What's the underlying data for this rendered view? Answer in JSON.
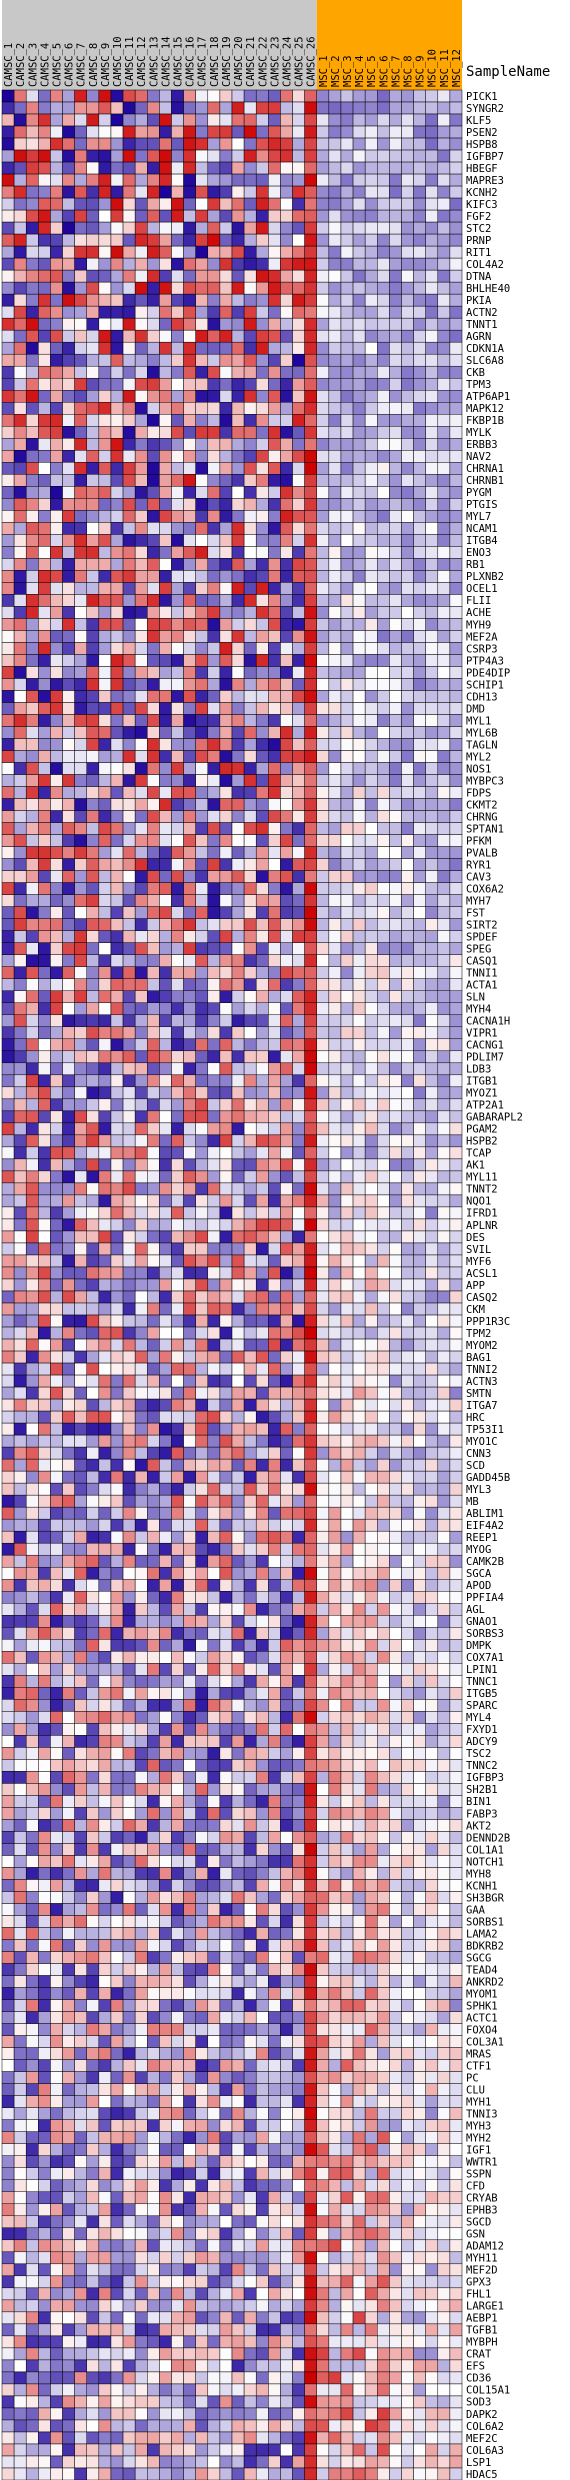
{
  "chart_data": {
    "type": "heatmap",
    "header_label": "SampleName",
    "columns": [
      "CAMSC_1",
      "CAMSC_2",
      "CAMSC_3",
      "CAMSC_4",
      "CAMSC_5",
      "CAMSC_6",
      "CAMSC_7",
      "CAMSC_8",
      "CAMSC_9",
      "CAMSC_10",
      "CAMSC_11",
      "CAMSC_12",
      "CAMSC_13",
      "CAMSC_14",
      "CAMSC_15",
      "CAMSC_16",
      "CAMSC_17",
      "CAMSC_18",
      "CAMSC_19",
      "CAMSC_20",
      "CAMSC_21",
      "CAMSC_22",
      "CAMSC_23",
      "CAMSC_24",
      "CAMSC_25",
      "CAMSC_26",
      "MSC_1",
      "MSC_2",
      "MSC_3",
      "MSC_4",
      "MSC_5",
      "MSC_6",
      "MSC_7",
      "MSC_8",
      "MSC_9",
      "MSC_10",
      "MSC_11",
      "MSC_12"
    ],
    "column_groups": [
      {
        "name": "CAMSC",
        "count": 26,
        "color": "#c8c8c8"
      },
      {
        "name": "MSC",
        "count": 12,
        "color": "#ffa500"
      }
    ],
    "rows": [
      "PICK1",
      "SYNGR2",
      "KLF5",
      "PSEN2",
      "HSPB8",
      "IGFBP7",
      "HBEGF",
      "MAPRE3",
      "KCNH2",
      "KIFC3",
      "FGF2",
      "STC2",
      "PRNP",
      "RIT1",
      "COL4A2",
      "DTNA",
      "BHLHE40",
      "PKIA",
      "ACTN2",
      "TNNT1",
      "AGRN",
      "CDKN1A",
      "SLC6A8",
      "CKB",
      "TPM3",
      "ATP6AP1",
      "MAPK12",
      "FKBP1B",
      "MYLK",
      "ERBB3",
      "NAV2",
      "CHRNA1",
      "CHRNB1",
      "PYGM",
      "PTGIS",
      "MYL7",
      "NCAM1",
      "ITGB4",
      "ENO3",
      "RB1",
      "PLXNB2",
      "OCEL1",
      "FLII",
      "ACHE",
      "MYH9",
      "MEF2A",
      "CSRP3",
      "PTP4A3",
      "PDE4DIP",
      "SCHIP1",
      "CDH13",
      "DMD",
      "MYL1",
      "MYL6B",
      "TAGLN",
      "MYL2",
      "NOS1",
      "MYBPC3",
      "FDPS",
      "CKMT2",
      "CHRNG",
      "SPTAN1",
      "PFKM",
      "PVALB",
      "RYR1",
      "CAV3",
      "COX6A2",
      "MYH7",
      "FST",
      "SIRT2",
      "SPDEF",
      "SPEG",
      "CASQ1",
      "TNNI1",
      "ACTA1",
      "SLN",
      "MYH4",
      "CACNA1H",
      "VIPR1",
      "CACNG1",
      "PDLIM7",
      "LDB3",
      "ITGB1",
      "MYOZ1",
      "ATP2A1",
      "GABARAPL2",
      "PGAM2",
      "HSPB2",
      "TCAP",
      "AK1",
      "MYL11",
      "TNNT2",
      "NQO1",
      "IFRD1",
      "APLNR",
      "DES",
      "SVIL",
      "MYF6",
      "ACSL1",
      "APP",
      "CASQ2",
      "CKM",
      "PPP1R3C",
      "TPM2",
      "MYOM2",
      "BAG1",
      "TNNI2",
      "ACTN3",
      "SMTN",
      "ITGA7",
      "HRC",
      "TP53I1",
      "MYO1C",
      "CNN3",
      "SCD",
      "GADD45B",
      "MYL3",
      "MB",
      "ABLIM1",
      "EIF4A2",
      "REEP1",
      "MYOG",
      "CAMK2B",
      "SGCA",
      "APOD",
      "PPFIA4",
      "AGL",
      "GNAO1",
      "SORBS3",
      "DMPK",
      "COX7A1",
      "LPIN1",
      "TNNC1",
      "ITGB5",
      "SPARC",
      "MYL4",
      "FXYD1",
      "ADCY9",
      "TSC2",
      "TNNC2",
      "IGFBP3",
      "SH2B1",
      "BIN1",
      "FABP3",
      "AKT2",
      "DENND2B",
      "COL1A1",
      "NOTCH1",
      "MYH8",
      "KCNH1",
      "SH3BGR",
      "GAA",
      "SORBS1",
      "LAMA2",
      "BDKRB2",
      "SGCG",
      "TEAD4",
      "ANKRD2",
      "MYOM1",
      "SPHK1",
      "ACTC1",
      "FOXO4",
      "COL3A1",
      "MRAS",
      "CTF1",
      "PC",
      "CLU",
      "MYH1",
      "TNNI3",
      "MYH3",
      "MYH2",
      "IGF1",
      "WWTR1",
      "SSPN",
      "CFD",
      "CRYAB",
      "EPHB3",
      "SGCD",
      "GSN",
      "ADAM12",
      "MYH11",
      "MEF2D",
      "GPX3",
      "FHL1",
      "LARGE1",
      "AEBP1",
      "TGFB1",
      "MYBPH",
      "CRAT",
      "EFS",
      "CD36",
      "COL15A1",
      "SOD3",
      "DAPK2",
      "COL6A2",
      "MEF2C",
      "COL6A3",
      "LSP1",
      "HDAC5"
    ],
    "color_scale": {
      "low": "#1a0099",
      "mid": "#ffffff",
      "high": "#cc0000",
      "range": [
        -3,
        3
      ]
    },
    "values": [],
    "seed": 20240611
  }
}
